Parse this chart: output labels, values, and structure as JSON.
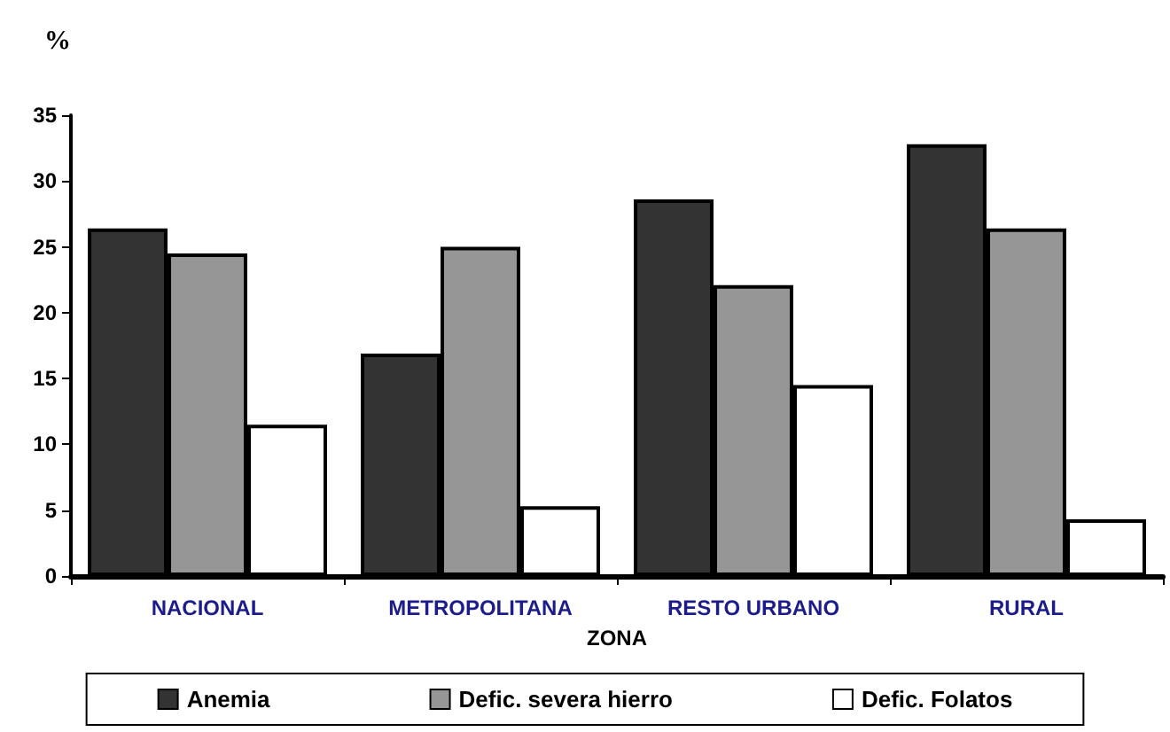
{
  "chart_data": {
    "type": "bar",
    "ylabel": "%",
    "xlabel": "ZONA",
    "categories": [
      "NACIONAL",
      "METROPOLITANA",
      "RESTO URBANO",
      "RURAL"
    ],
    "series": [
      {
        "name": "Anemia",
        "color": "#333333",
        "values": [
          26.4,
          16.9,
          28.6,
          32.8
        ]
      },
      {
        "name": "Defic. severa hierro",
        "color": "#969696",
        "values": [
          24.5,
          25.0,
          22.1,
          26.4
        ]
      },
      {
        "name": "Defic. Folatos",
        "color": "#ffffff",
        "values": [
          11.5,
          5.3,
          14.5,
          4.3
        ]
      }
    ],
    "ylim": [
      0,
      35
    ],
    "yticks": [
      0,
      5,
      10,
      15,
      20,
      25,
      30,
      35
    ],
    "grid": false,
    "legend": "bottom"
  }
}
